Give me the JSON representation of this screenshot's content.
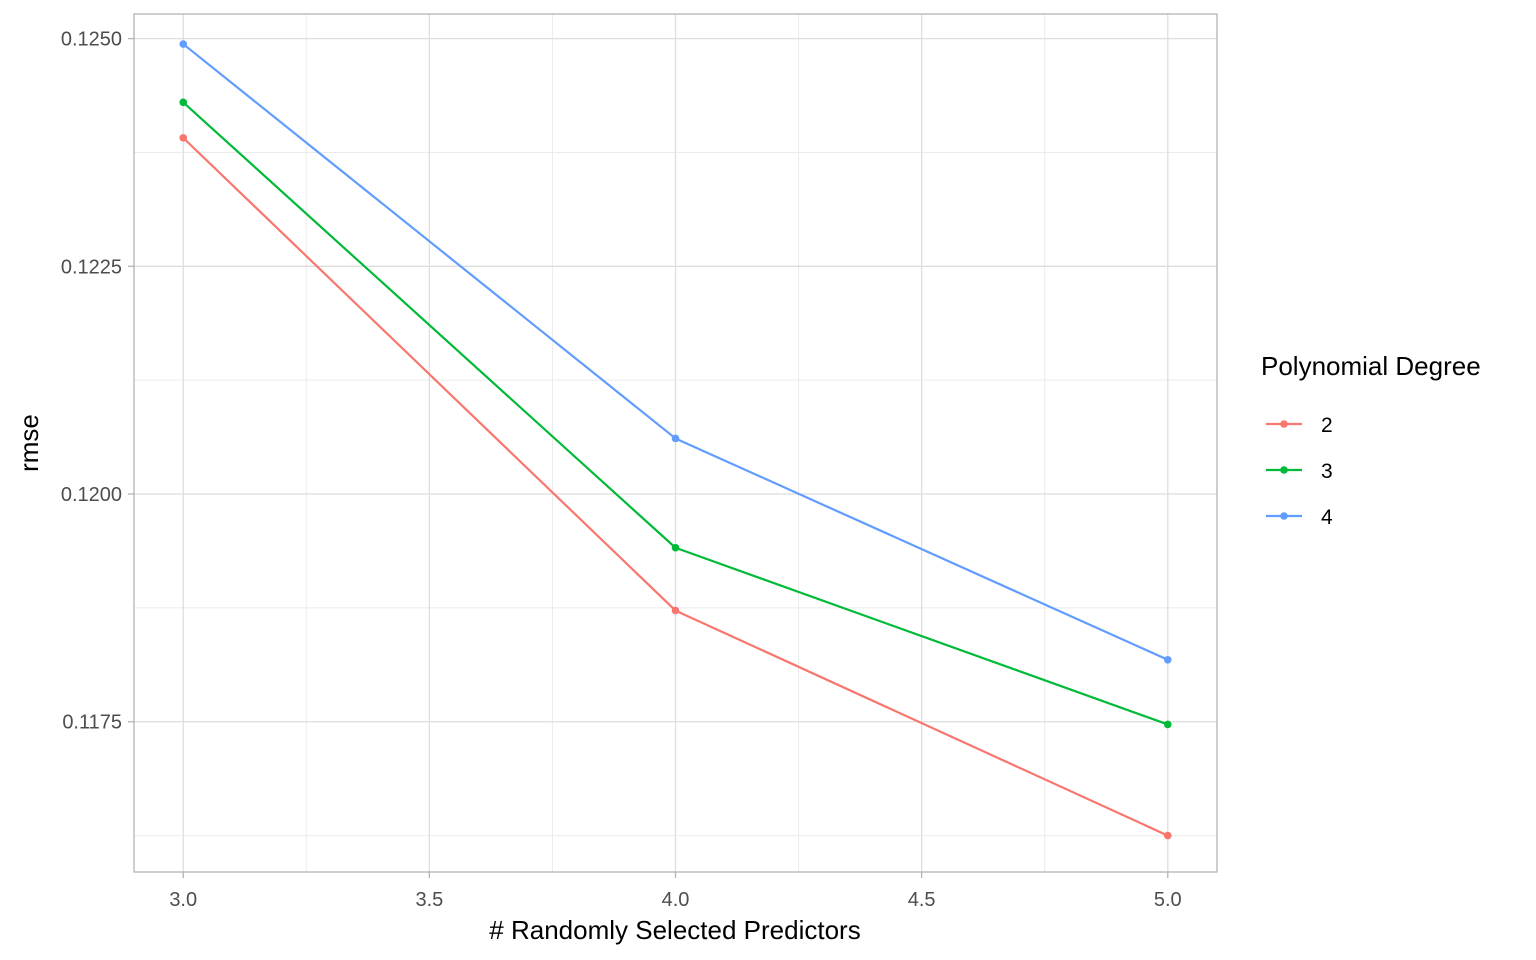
{
  "chart_data": {
    "type": "line",
    "title": "",
    "xlabel": "# Randomly Selected Predictors",
    "ylabel": "rmse",
    "x": [
      3.0,
      4.0,
      5.0
    ],
    "xlim": [
      2.9,
      5.1
    ],
    "ylim": [
      0.11585,
      0.12527
    ],
    "x_ticks": [
      3.0,
      3.5,
      4.0,
      4.5,
      5.0
    ],
    "x_tick_labels": [
      "3.0",
      "3.5",
      "4.0",
      "4.5",
      "5.0"
    ],
    "y_ticks": [
      0.1175,
      0.12,
      0.1225,
      0.125
    ],
    "y_tick_labels": [
      "0.1175",
      "0.1200",
      "0.1225",
      "0.1250"
    ],
    "grid": true,
    "legend": {
      "title": "Polynomial Degree",
      "position": "right"
    },
    "series": [
      {
        "name": "2",
        "color": "#F8766D",
        "values": [
          0.12391,
          0.11872,
          0.11625
        ]
      },
      {
        "name": "3",
        "color": "#00BA38",
        "values": [
          0.1243,
          0.11941,
          0.11747
        ]
      },
      {
        "name": "4",
        "color": "#619CFF",
        "values": [
          0.12494,
          0.12061,
          0.11818
        ]
      }
    ]
  }
}
